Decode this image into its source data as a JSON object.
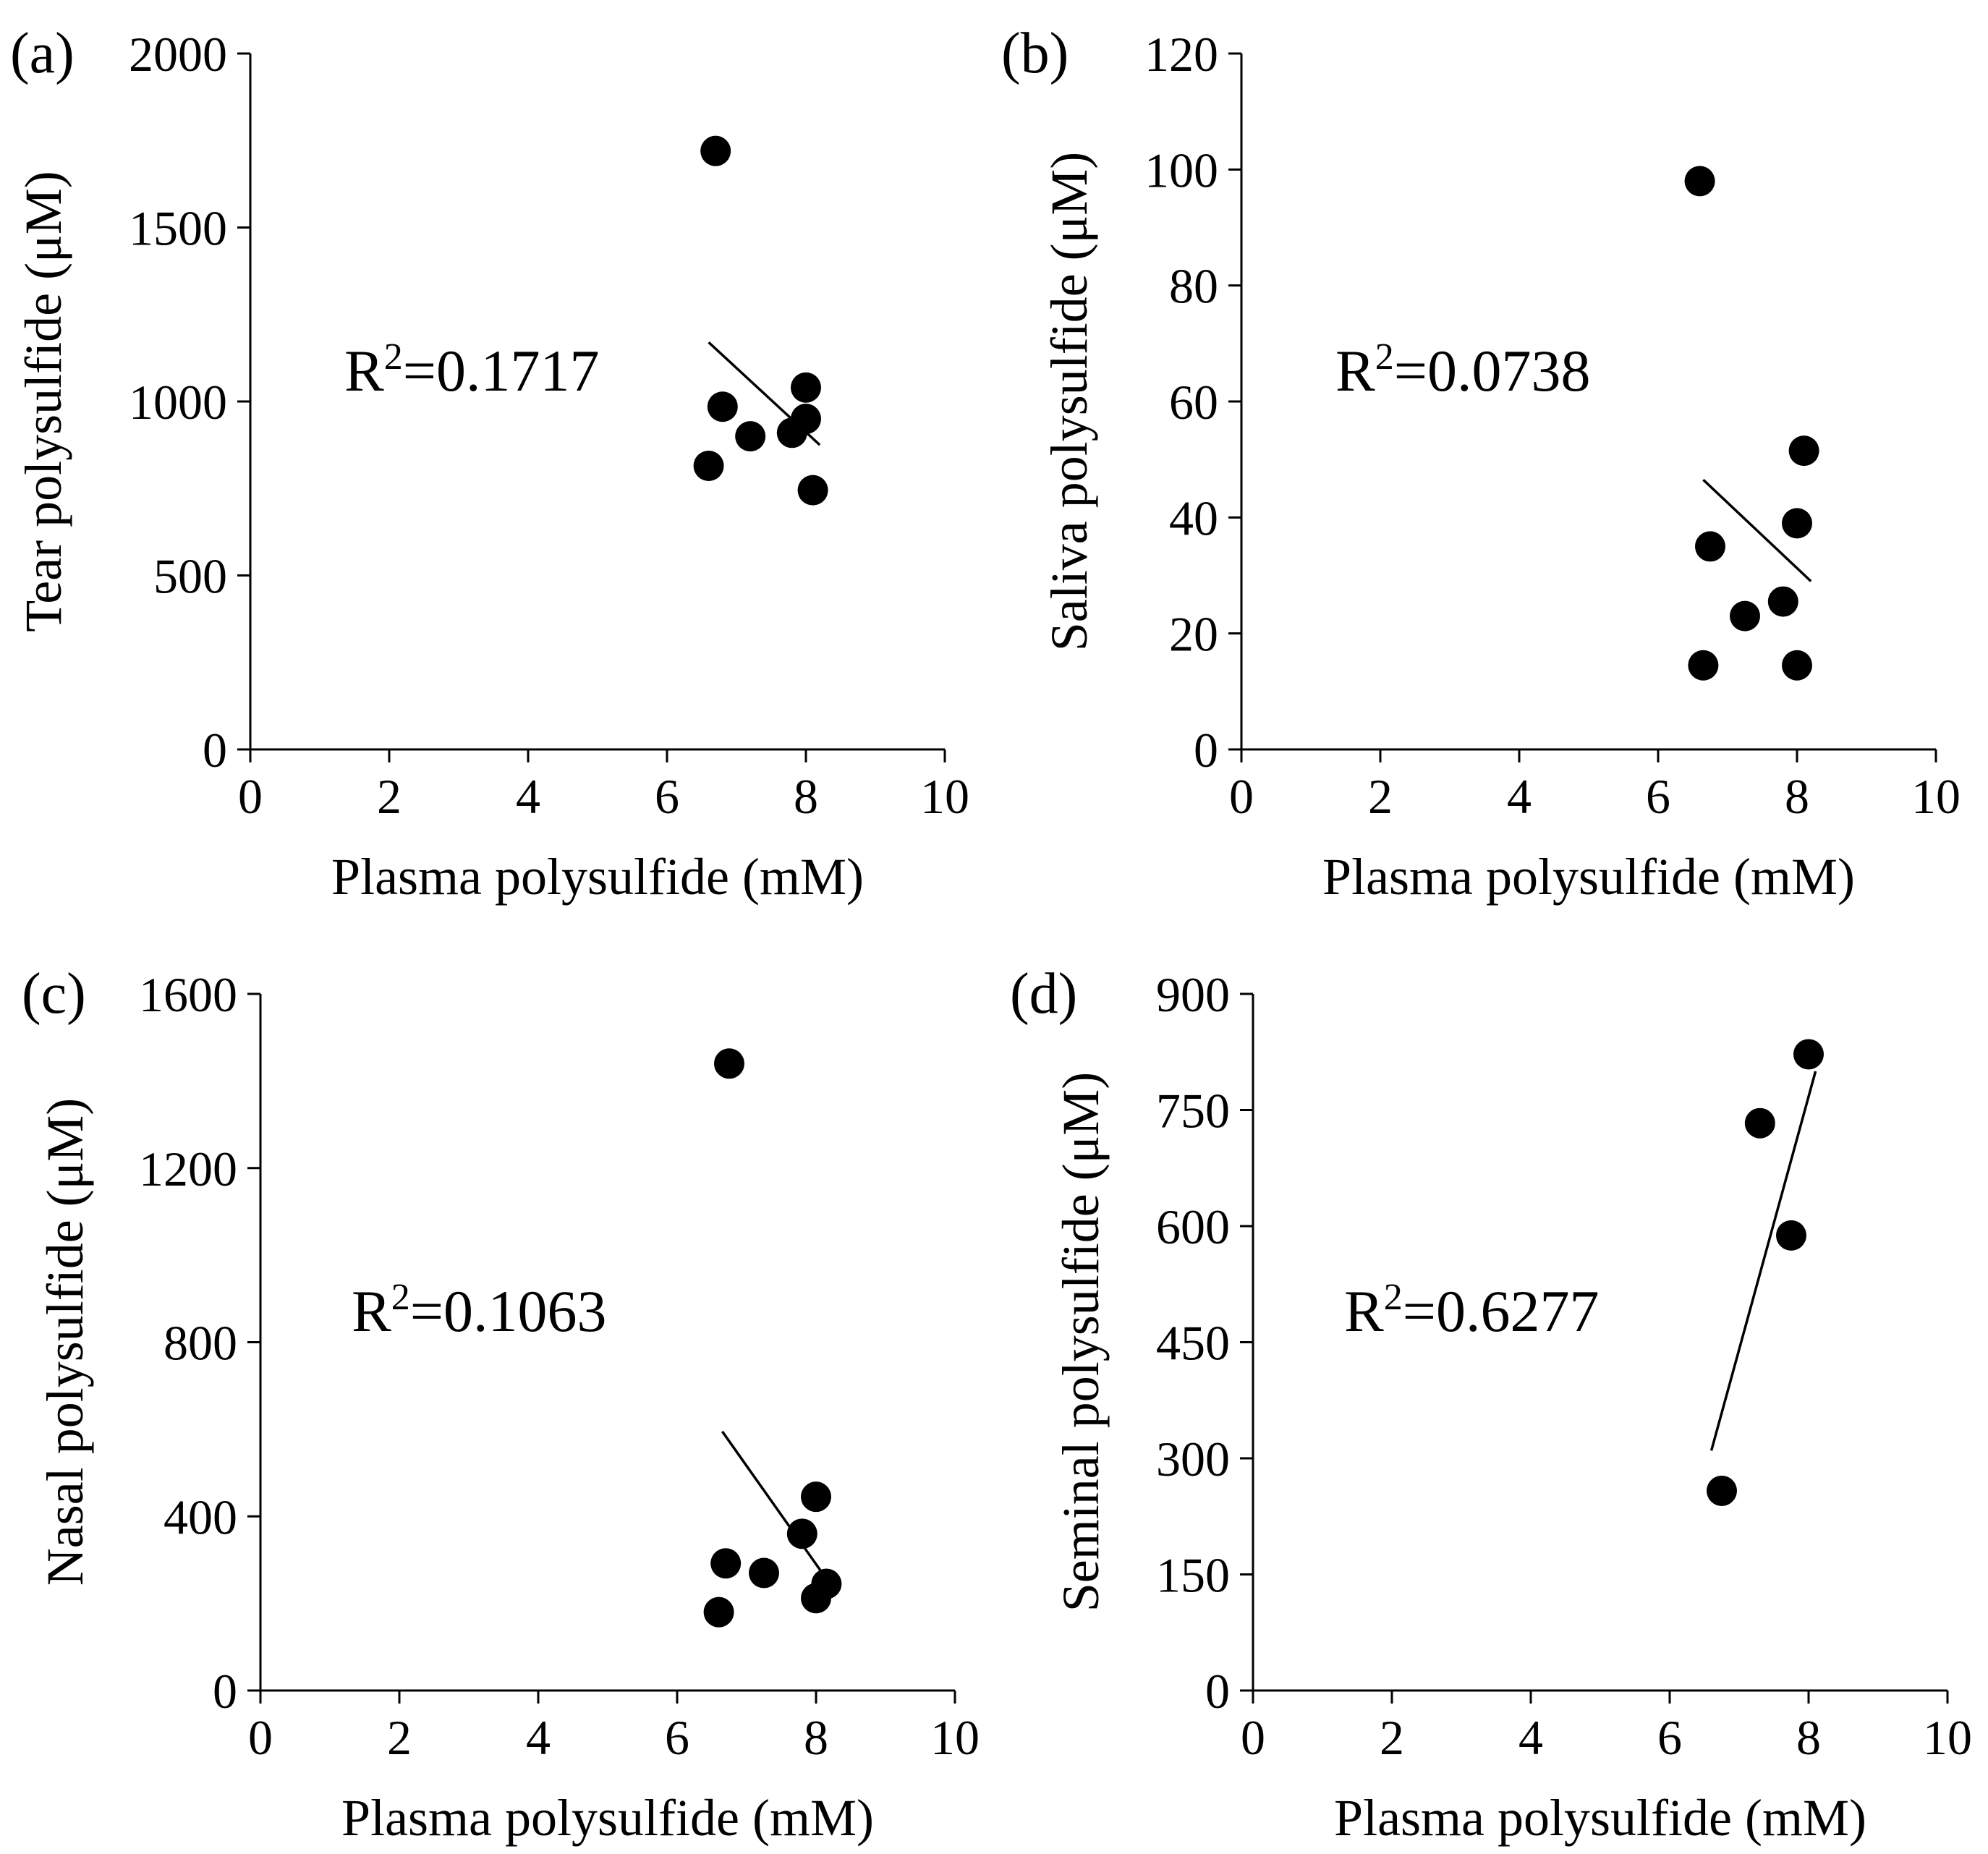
{
  "chart_data": [
    {
      "type": "scatter",
      "panel_label": "(a)",
      "xlabel": "Plasma polysulfide (mM)",
      "ylabel": "Tear polysulfide (μM)",
      "xlim": [
        0,
        10
      ],
      "ylim": [
        0,
        2000
      ],
      "x_ticks": [
        0,
        2,
        4,
        6,
        8,
        10
      ],
      "y_ticks": [
        0,
        500,
        1000,
        1500,
        2000
      ],
      "points": [
        {
          "x": 6.7,
          "y": 1720
        },
        {
          "x": 6.8,
          "y": 985
        },
        {
          "x": 7.2,
          "y": 900
        },
        {
          "x": 7.8,
          "y": 910
        },
        {
          "x": 8.0,
          "y": 1040
        },
        {
          "x": 8.0,
          "y": 950
        },
        {
          "x": 6.6,
          "y": 815
        },
        {
          "x": 8.1,
          "y": 745
        }
      ],
      "fit_line": {
        "x": [
          6.6,
          8.2
        ],
        "y": [
          1170,
          875
        ]
      },
      "r_squared_label": {
        "prefix": "R",
        "superscript": "2",
        "value": "=0.1717"
      }
    },
    {
      "type": "scatter",
      "panel_label": "(b)",
      "xlabel": "Plasma polysulfide (mM)",
      "ylabel": "Saliva polysulfide (μM)",
      "xlim": [
        0,
        10
      ],
      "ylim": [
        0,
        120
      ],
      "x_ticks": [
        0,
        2,
        4,
        6,
        8,
        10
      ],
      "y_ticks": [
        0,
        20,
        40,
        60,
        80,
        100,
        120
      ],
      "points": [
        {
          "x": 6.6,
          "y": 98
        },
        {
          "x": 6.75,
          "y": 35
        },
        {
          "x": 7.25,
          "y": 23
        },
        {
          "x": 7.8,
          "y": 25.5
        },
        {
          "x": 8.1,
          "y": 51.5
        },
        {
          "x": 8.0,
          "y": 39
        },
        {
          "x": 6.65,
          "y": 14.5
        },
        {
          "x": 8.0,
          "y": 14.5
        }
      ],
      "fit_line": {
        "x": [
          6.65,
          8.2
        ],
        "y": [
          46.5,
          29
        ]
      },
      "r_squared_label": {
        "prefix": "R",
        "superscript": "2",
        "value": "=0.0738"
      }
    },
    {
      "type": "scatter",
      "panel_label": "(c)",
      "xlabel": "Plasma polysulfide (mM)",
      "ylabel": "Nasal polysulfide (μM)",
      "xlim": [
        0,
        10
      ],
      "ylim": [
        0,
        1600
      ],
      "x_ticks": [
        0,
        2,
        4,
        6,
        8,
        10
      ],
      "y_ticks": [
        0,
        400,
        800,
        1200,
        1600
      ],
      "points": [
        {
          "x": 6.75,
          "y": 1440
        },
        {
          "x": 6.7,
          "y": 292
        },
        {
          "x": 7.25,
          "y": 270
        },
        {
          "x": 7.8,
          "y": 360
        },
        {
          "x": 8.0,
          "y": 445
        },
        {
          "x": 8.15,
          "y": 245
        },
        {
          "x": 6.6,
          "y": 180
        },
        {
          "x": 8.0,
          "y": 212
        }
      ],
      "fit_line": {
        "x": [
          6.65,
          8.2
        ],
        "y": [
          595,
          245
        ]
      },
      "r_squared_label": {
        "prefix": "R",
        "superscript": "2",
        "value": "=0.1063"
      }
    },
    {
      "type": "scatter",
      "panel_label": "(d)",
      "xlabel": "Plasma polysulfide (mM)",
      "ylabel": "Seminal polysulfide (μM)",
      "xlim": [
        0,
        10
      ],
      "ylim": [
        0,
        900
      ],
      "x_ticks": [
        0,
        2,
        4,
        6,
        8,
        10
      ],
      "y_ticks": [
        0,
        150,
        300,
        450,
        600,
        750,
        900
      ],
      "points": [
        {
          "x": 8.0,
          "y": 822
        },
        {
          "x": 7.3,
          "y": 733
        },
        {
          "x": 7.75,
          "y": 588
        },
        {
          "x": 6.75,
          "y": 258
        }
      ],
      "fit_line": {
        "x": [
          6.6,
          8.1
        ],
        "y": [
          310,
          800
        ]
      },
      "r_squared_label": {
        "prefix": "R",
        "superscript": "2",
        "value": "=0.6277"
      }
    }
  ]
}
